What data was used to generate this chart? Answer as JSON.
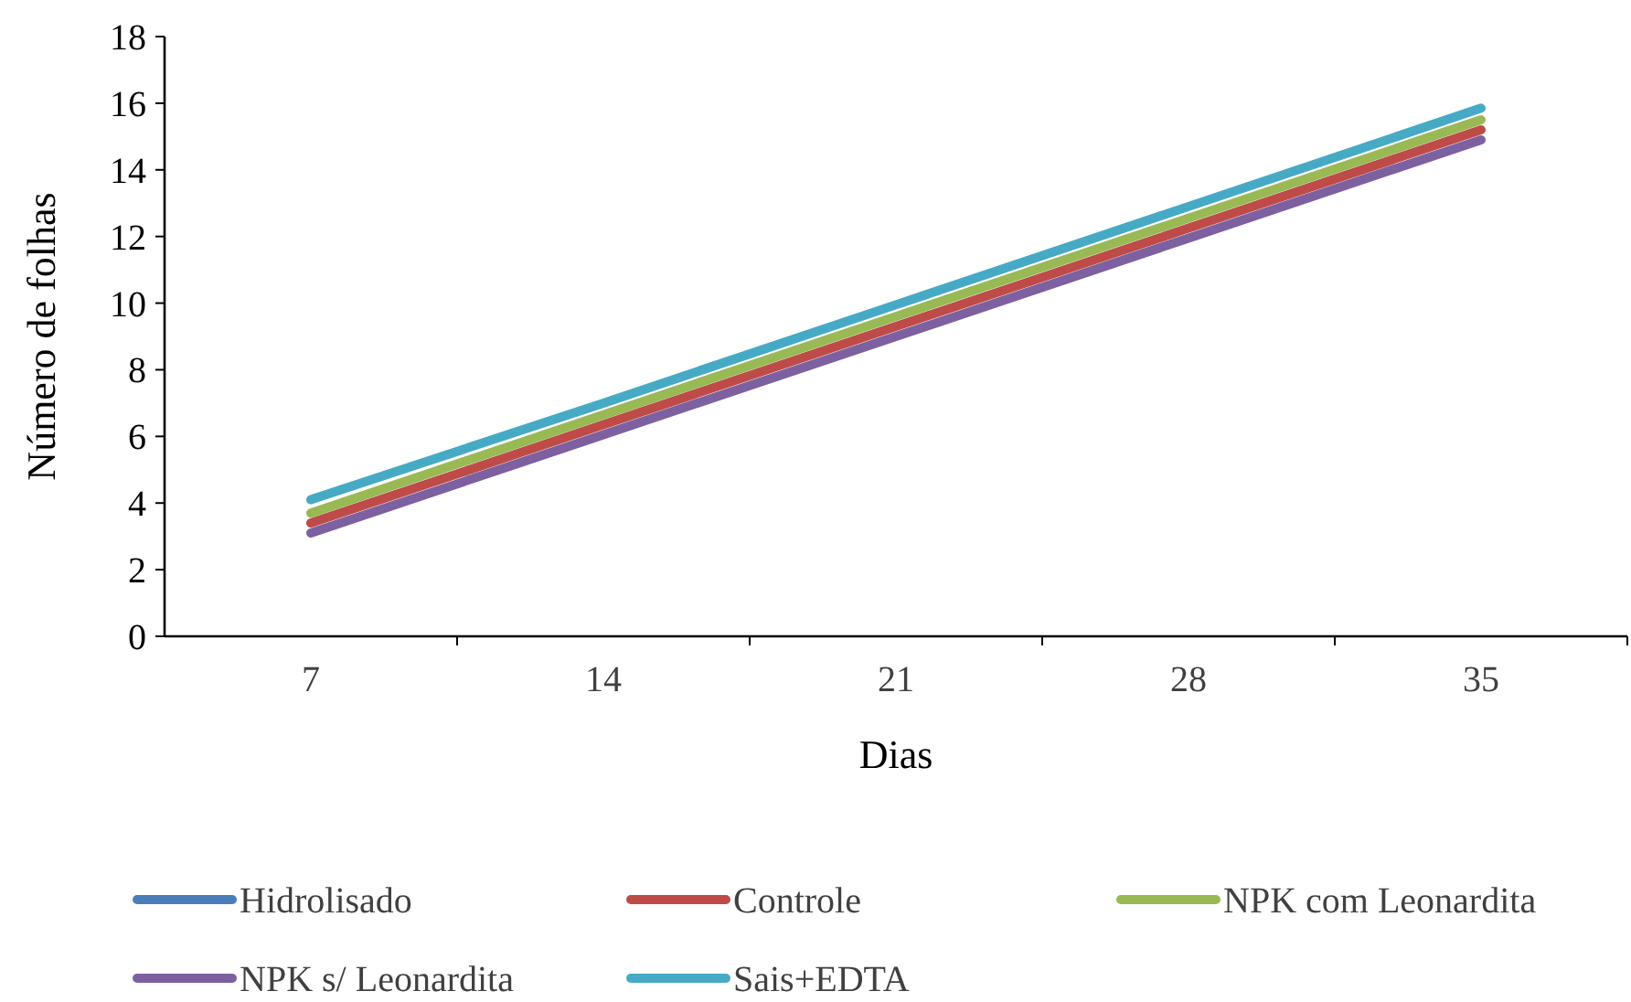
{
  "chart_data": {
    "type": "line",
    "xlabel": "Dias",
    "ylabel": "Número de folhas",
    "categories": [
      "7",
      "14",
      "21",
      "28",
      "35"
    ],
    "ylim": [
      0,
      18
    ],
    "yticks": [
      0,
      2,
      4,
      6,
      8,
      10,
      12,
      14,
      16,
      18
    ],
    "grid": false,
    "legend": "bottom",
    "marker": "none",
    "line_style": "solid",
    "series": [
      {
        "name": "Hidrolisado",
        "color": "#4a7ebb",
        "values": [
          null,
          null,
          null,
          null,
          null
        ]
      },
      {
        "name": "Controle",
        "color": "#be4b48",
        "values": [
          3.4,
          6.35,
          9.3,
          12.25,
          15.2
        ]
      },
      {
        "name": "NPK com Leonardita",
        "color": "#98b954",
        "values": [
          3.7,
          6.65,
          9.6,
          12.55,
          15.5
        ]
      },
      {
        "name": "NPK s/ Leonardita",
        "color": "#7d60a0",
        "values": [
          3.1,
          6.05,
          9.0,
          11.95,
          14.9
        ]
      },
      {
        "name": "Sais+EDTA",
        "color": "#46aac5",
        "values": [
          4.1,
          7.0,
          9.95,
          12.9,
          15.85
        ]
      }
    ]
  }
}
